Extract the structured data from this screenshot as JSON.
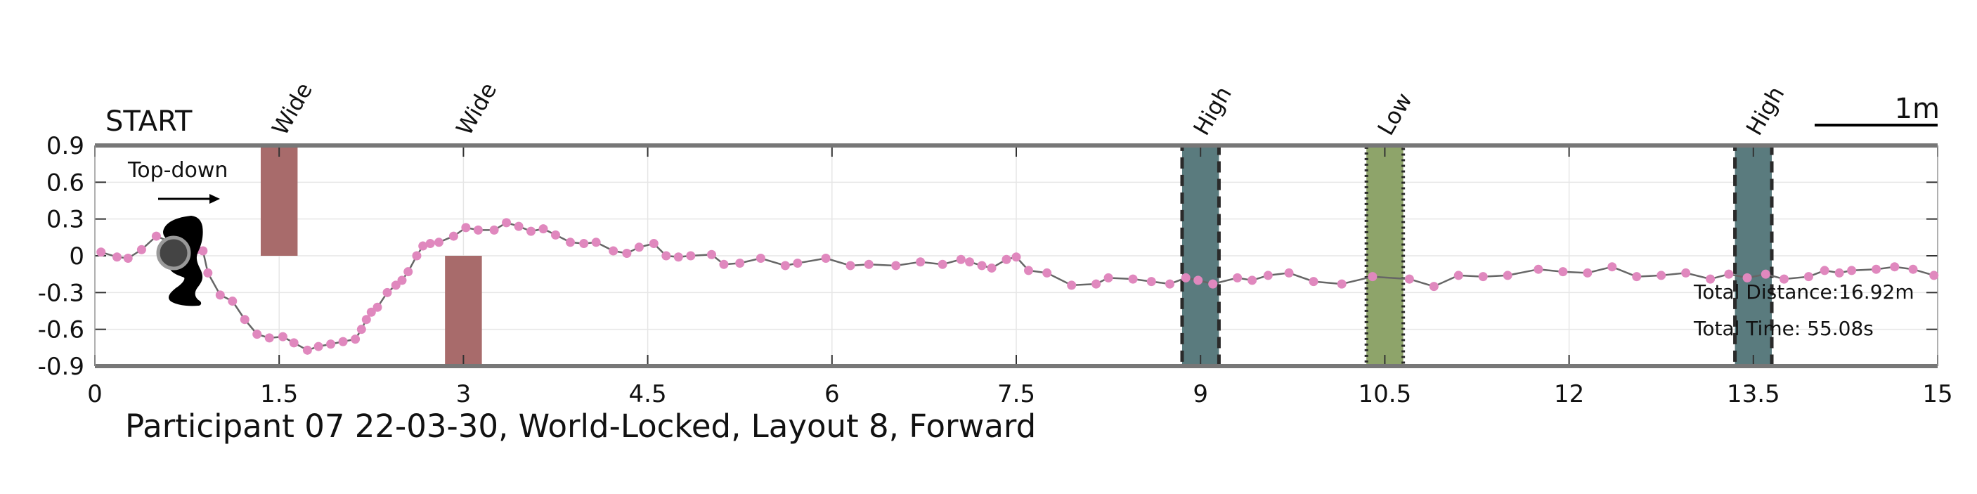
{
  "chart_data": {
    "type": "line",
    "title": "Participant 07 22-03-30, World-Locked, Layout 8, Forward",
    "start_label": "START",
    "view_label": "Top-down",
    "scale_label": "1m",
    "xlim": [
      0,
      15
    ],
    "ylim": [
      -0.9,
      0.9
    ],
    "x_ticks": [
      "0",
      "1.5",
      "3",
      "4.5",
      "6",
      "7.5",
      "9",
      "10.5",
      "12",
      "13.5",
      "15"
    ],
    "y_ticks": [
      "0.9",
      "0.6",
      "0.3",
      "0",
      "-0.3",
      "-0.6",
      "-0.9"
    ],
    "grid": true,
    "stats": {
      "distance": "Total Distance:16.92m",
      "time": "Total Time: 55.08s"
    },
    "obstacles": [
      {
        "label": "Wide",
        "x": [
          1.35,
          1.65
        ],
        "y": [
          0,
          0.9
        ],
        "color": "#a86b6b",
        "border": "none"
      },
      {
        "label": "Wide",
        "x": [
          2.85,
          3.15
        ],
        "y": [
          -0.9,
          0
        ],
        "color": "#a86b6b",
        "border": "none"
      },
      {
        "label": "High",
        "x": [
          8.85,
          9.15
        ],
        "y": [
          -0.9,
          0.9
        ],
        "color": "#5a7b7e",
        "border": "dashed"
      },
      {
        "label": "Low",
        "x": [
          10.35,
          10.65
        ],
        "y": [
          -0.9,
          0.9
        ],
        "color": "#8ea46a",
        "border": "dotted"
      },
      {
        "label": "High",
        "x": [
          13.35,
          13.65
        ],
        "y": [
          -0.9,
          0.9
        ],
        "color": "#5a7b7e",
        "border": "dashed"
      }
    ],
    "series": [
      {
        "line_color": "#666666",
        "marker_color": "#e088be",
        "x": [
          0.05,
          0.18,
          0.27,
          0.38,
          0.5,
          0.6,
          0.68,
          0.77,
          0.83,
          0.88,
          0.92,
          1.02,
          1.12,
          1.22,
          1.32,
          1.42,
          1.53,
          1.62,
          1.73,
          1.82,
          1.92,
          2.02,
          2.12,
          2.17,
          2.21,
          2.25,
          2.3,
          2.38,
          2.45,
          2.5,
          2.55,
          2.62,
          2.67,
          2.73,
          2.8,
          2.92,
          3.02,
          3.12,
          3.25,
          3.35,
          3.45,
          3.55,
          3.65,
          3.75,
          3.87,
          3.98,
          4.08,
          4.22,
          4.33,
          4.43,
          4.55,
          4.65,
          4.75,
          4.85,
          5.02,
          5.12,
          5.25,
          5.42,
          5.62,
          5.72,
          5.95,
          6.15,
          6.3,
          6.52,
          6.72,
          6.9,
          7.05,
          7.12,
          7.22,
          7.3,
          7.42,
          7.5,
          7.6,
          7.75,
          7.95,
          8.15,
          8.25,
          8.45,
          8.6,
          8.75,
          8.88,
          8.98,
          9.1,
          9.3,
          9.42,
          9.55,
          9.72,
          9.92,
          10.15,
          10.4,
          10.7,
          10.9,
          11.1,
          11.3,
          11.5,
          11.75,
          11.95,
          12.15,
          12.35,
          12.55,
          12.75,
          12.95,
          13.15,
          13.3,
          13.45,
          13.6,
          13.75,
          13.95,
          14.08,
          14.2,
          14.3,
          14.5,
          14.65,
          14.8,
          14.97
        ],
        "y": [
          0.03,
          -0.01,
          -0.02,
          0.05,
          0.16,
          0.12,
          0.08,
          0.07,
          0.05,
          0.04,
          -0.14,
          -0.32,
          -0.37,
          -0.52,
          -0.64,
          -0.67,
          -0.66,
          -0.71,
          -0.77,
          -0.74,
          -0.72,
          -0.7,
          -0.68,
          -0.6,
          -0.52,
          -0.46,
          -0.42,
          -0.3,
          -0.24,
          -0.2,
          -0.13,
          0.0,
          0.08,
          0.1,
          0.11,
          0.16,
          0.23,
          0.21,
          0.21,
          0.27,
          0.24,
          0.2,
          0.22,
          0.17,
          0.11,
          0.1,
          0.11,
          0.04,
          0.02,
          0.07,
          0.1,
          0.0,
          -0.01,
          0.0,
          0.01,
          -0.07,
          -0.06,
          -0.02,
          -0.08,
          -0.06,
          -0.02,
          -0.08,
          -0.07,
          -0.08,
          -0.05,
          -0.07,
          -0.03,
          -0.05,
          -0.08,
          -0.1,
          -0.03,
          -0.01,
          -0.12,
          -0.14,
          -0.24,
          -0.23,
          -0.18,
          -0.19,
          -0.21,
          -0.23,
          -0.18,
          -0.2,
          -0.23,
          -0.18,
          -0.2,
          -0.16,
          -0.14,
          -0.21,
          -0.23,
          -0.17,
          -0.19,
          -0.25,
          -0.16,
          -0.17,
          -0.16,
          -0.11,
          -0.13,
          -0.14,
          -0.09,
          -0.17,
          -0.16,
          -0.14,
          -0.19,
          -0.15,
          -0.18,
          -0.15,
          -0.19,
          -0.17,
          -0.12,
          -0.14,
          -0.12,
          -0.11,
          -0.09,
          -0.11,
          -0.16
        ]
      }
    ]
  }
}
